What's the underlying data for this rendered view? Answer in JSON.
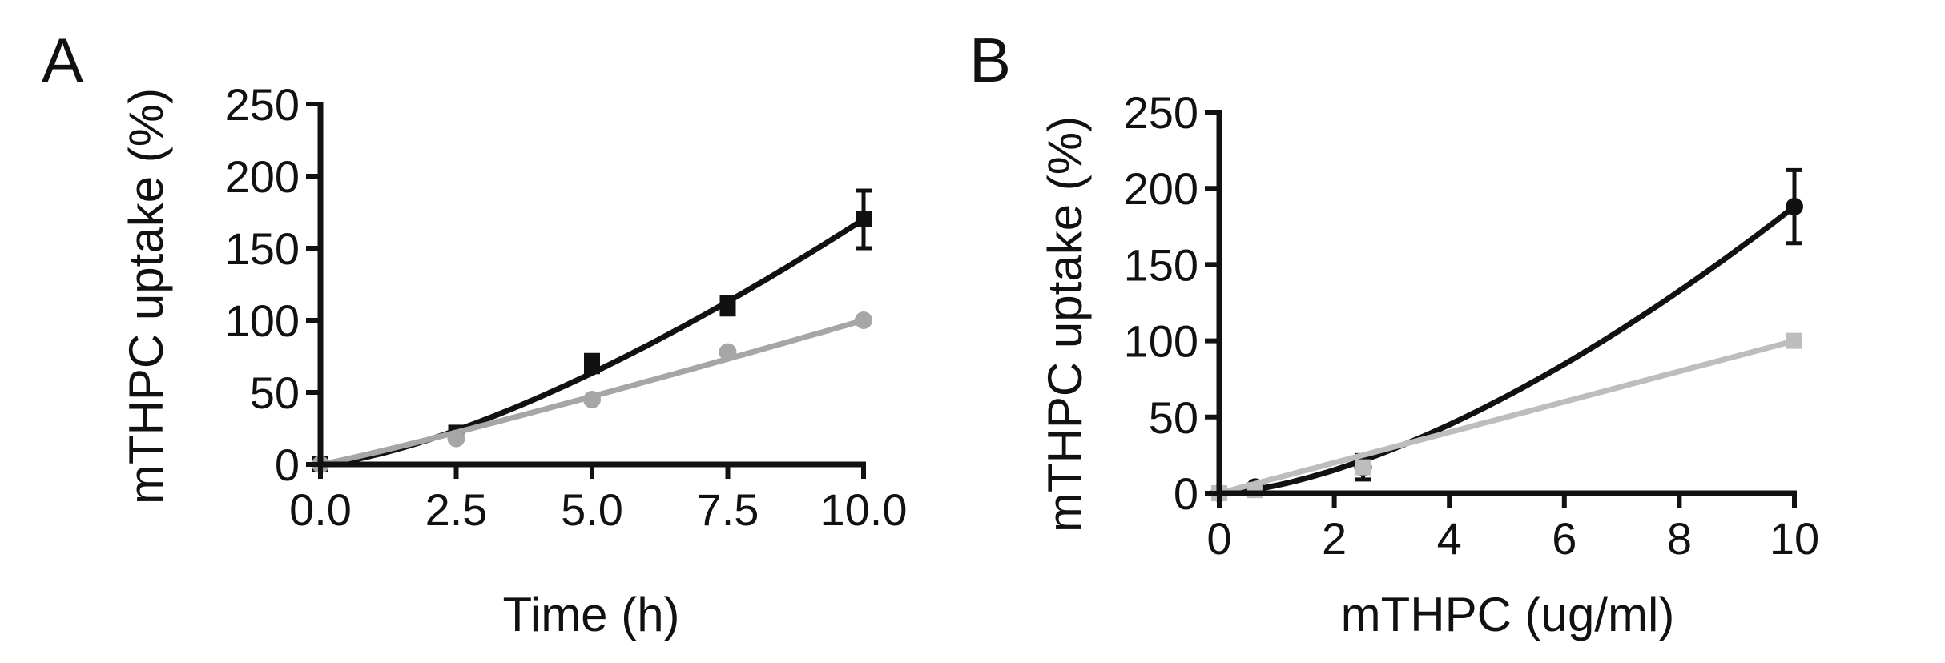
{
  "chart_data": [
    {
      "panel": "A",
      "type": "line",
      "title": "",
      "xlabel": "Time (h)",
      "ylabel": "mTHPC uptake (%)",
      "xlim": [
        0,
        10
      ],
      "ylim": [
        0,
        250
      ],
      "xticks": [
        0,
        2.5,
        5,
        7.5,
        10
      ],
      "xtick_labels": [
        "0.0",
        "2.5",
        "5.0",
        "7.5",
        "10.0"
      ],
      "yticks": [
        0,
        50,
        100,
        150,
        200,
        250
      ],
      "ytick_labels": [
        "0",
        "50",
        "100",
        "150",
        "200",
        "250"
      ],
      "grid": false,
      "series": [
        {
          "name": "black",
          "color": "#111111",
          "marker": "square",
          "x": [
            0,
            2.5,
            5,
            7.5,
            10
          ],
          "y": [
            0,
            22,
            70,
            110,
            170
          ],
          "err": [
            3,
            3,
            6,
            6,
            20
          ],
          "fit": "power"
        },
        {
          "name": "grey",
          "color": "#a6a6a6",
          "marker": "circle",
          "x": [
            0,
            2.5,
            5,
            7.5,
            10
          ],
          "y": [
            0,
            18,
            45,
            78,
            100
          ],
          "err": [
            0,
            0,
            0,
            0,
            0
          ],
          "fit": "power"
        }
      ]
    },
    {
      "panel": "B",
      "type": "line",
      "title": "",
      "xlabel": "mTHPC (ug/ml)",
      "ylabel": "mTHPC uptake (%)",
      "xlim": [
        0,
        10
      ],
      "ylim": [
        0,
        250
      ],
      "xticks": [
        0,
        2,
        4,
        6,
        8,
        10
      ],
      "xtick_labels": [
        "0",
        "2",
        "4",
        "6",
        "8",
        "10"
      ],
      "yticks": [
        0,
        50,
        100,
        150,
        200,
        250
      ],
      "ytick_labels": [
        "0",
        "50",
        "100",
        "150",
        "200",
        "250"
      ],
      "grid": false,
      "series": [
        {
          "name": "black",
          "color": "#111111",
          "marker": "circle",
          "x": [
            0,
            0.625,
            2.5,
            10
          ],
          "y": [
            0,
            4,
            17,
            188
          ],
          "err": [
            0,
            2,
            8,
            24
          ],
          "fit": "power"
        },
        {
          "name": "grey",
          "color": "#bdbdbd",
          "marker": "square",
          "x": [
            0,
            0.625,
            2.5,
            10
          ],
          "y": [
            0,
            2,
            17,
            100
          ],
          "err": [
            0,
            0,
            0,
            0
          ],
          "fit": "linear"
        }
      ]
    }
  ]
}
